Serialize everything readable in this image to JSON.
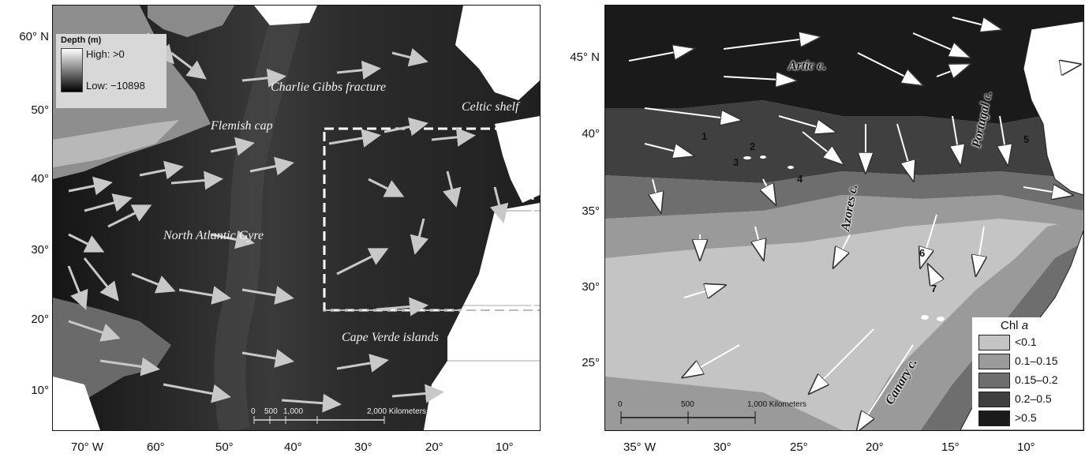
{
  "left_map": {
    "labels": {
      "charlie_gibbs": "Charlie Gibbs fracture",
      "celtic_shelf": "Celtic shelf",
      "flemish_cap": "Flemish cap",
      "north_atlantic_gyre": "North Atlantic Gyre",
      "cape_verde": "Cape Verde islands"
    },
    "legend": {
      "title": "Depth (m)",
      "high": "High: >0",
      "low": "Low: −10898"
    },
    "scale": {
      "t0": "0",
      "t500": "500",
      "t1000": "1,000",
      "t2000": "2,000 Kilometers"
    },
    "y_ticks": [
      "60° N",
      "50°",
      "40°",
      "30°",
      "20°",
      "10°"
    ],
    "x_ticks": [
      "70° W",
      "60°",
      "50°",
      "40°",
      "30°",
      "20°",
      "10°"
    ]
  },
  "right_map": {
    "labels": {
      "artic": "Artic c.",
      "portugal": "Portugal c.",
      "azores": "Azores c.",
      "canary": "Canary c."
    },
    "sites": [
      "1",
      "2",
      "3",
      "4",
      "5",
      "6",
      "7"
    ],
    "legend": {
      "title": "Chl a",
      "title_plain": "Chl ",
      "title_italic": "a",
      "classes": [
        {
          "label": "<0.1",
          "color": "#c4c4c4"
        },
        {
          "label": "0.1–0.15",
          "color": "#9a9a9a"
        },
        {
          "label": "0.15–0.2",
          "color": "#6e6e6e"
        },
        {
          "label": "0.2–0.5",
          "color": "#404040"
        },
        {
          "label": ">0.5",
          "color": "#1a1a1a"
        }
      ]
    },
    "scale": {
      "t0": "0",
      "t500": "500",
      "t1000": "1,000 Kilometers"
    },
    "y_ticks": [
      "45° N",
      "40°",
      "35°",
      "30°",
      "25°"
    ],
    "x_ticks": [
      "35° W",
      "30°",
      "25°",
      "20°",
      "15°",
      "10°"
    ]
  }
}
